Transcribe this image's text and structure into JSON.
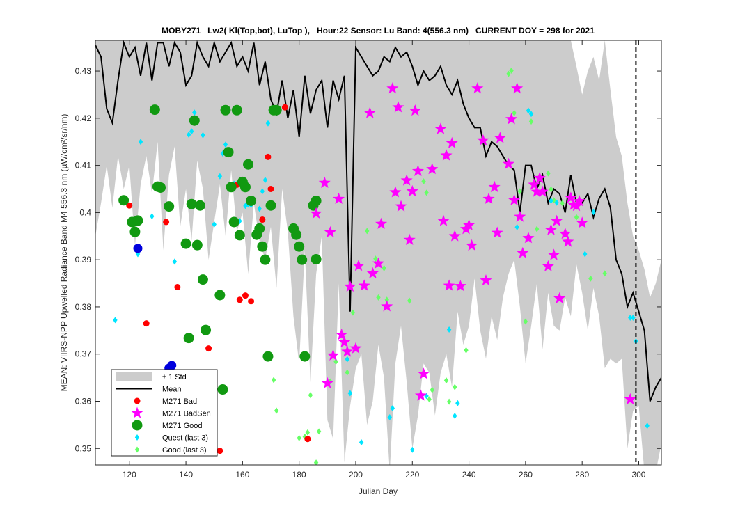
{
  "chart_data": {
    "type": "scatter",
    "title": "MOBY271   Lw2( Kl(Top,bot), LuTop ),   Hour:22 Sensor: Lu Band: 4(556.3 nm)   CURRENT DOY = 298 for 2021",
    "xlabel": "Julian Day",
    "ylabel": "MEAN: VIIRS-NPP Upwelled Radiance Band M4 556.3 nm (µW/cm²/sr/nm)",
    "xlim": [
      108,
      308
    ],
    "ylim": [
      0.3465,
      0.4365
    ],
    "xticks": [
      120,
      140,
      160,
      180,
      200,
      220,
      240,
      260,
      280,
      300
    ],
    "xtick_labels": [
      "120",
      "140",
      "160",
      "180",
      "200",
      "220",
      "240",
      "260",
      "280",
      "300"
    ],
    "yticks": [
      0.35,
      0.36,
      0.37,
      0.38,
      0.39,
      0.4,
      0.41,
      0.42,
      0.43
    ],
    "ytick_labels": [
      "0.35",
      "0.36",
      "0.37",
      "0.38",
      "0.39",
      "0.4",
      "0.41",
      "0.42",
      "0.43"
    ],
    "grid": false,
    "legend_position": "bottom-left",
    "current_doy": 298,
    "colors": {
      "std_band": "#cccccc",
      "mean": "#000000",
      "bad": "#ff0000",
      "badsen": "#ff00ff",
      "good": "#119911",
      "quest": "#00e5ff",
      "good_last3": "#66ff66",
      "blue": "#0000dd"
    },
    "legend": [
      {
        "key": "std",
        "label": "± 1 Std"
      },
      {
        "key": "mean",
        "label": "Mean"
      },
      {
        "key": "bad",
        "label": "M271 Bad"
      },
      {
        "key": "badsen",
        "label": "M271 BadSen"
      },
      {
        "key": "good",
        "label": "M271 Good"
      },
      {
        "key": "quest",
        "label": "Quest (last 3)"
      },
      {
        "key": "good_last3",
        "label": "Good (last 3)"
      }
    ],
    "series": [
      {
        "name": "Mean",
        "key": "mean",
        "x": [
          108,
          110,
          112,
          114,
          116,
          118,
          120,
          122,
          124,
          126,
          128,
          130,
          132,
          134,
          136,
          138,
          140,
          142,
          144,
          146,
          148,
          150,
          152,
          154,
          156,
          158,
          160,
          162,
          164,
          166,
          168,
          170,
          172,
          174,
          176,
          178,
          180,
          182,
          184,
          186,
          188,
          190,
          192,
          194,
          196,
          198,
          200,
          202,
          204,
          206,
          208,
          210,
          212,
          214,
          216,
          218,
          220,
          222,
          224,
          226,
          228,
          230,
          232,
          234,
          236,
          238,
          240,
          242,
          244,
          246,
          248,
          250,
          252,
          254,
          256,
          258,
          260,
          262,
          264,
          266,
          268,
          270,
          272,
          274,
          276,
          278,
          280,
          282,
          284,
          286,
          288,
          290,
          292,
          294,
          296,
          298,
          300,
          302,
          304,
          306,
          308
        ],
        "y": [
          0.4355,
          0.433,
          0.422,
          0.419,
          0.428,
          0.436,
          0.433,
          0.435,
          0.429,
          0.436,
          0.428,
          0.436,
          0.436,
          0.431,
          0.436,
          0.434,
          0.427,
          0.429,
          0.436,
          0.433,
          0.431,
          0.436,
          0.432,
          0.434,
          0.436,
          0.431,
          0.433,
          0.43,
          0.436,
          0.427,
          0.432,
          0.424,
          0.421,
          0.428,
          0.42,
          0.426,
          0.416,
          0.429,
          0.421,
          0.426,
          0.428,
          0.418,
          0.428,
          0.424,
          0.429,
          0.379,
          0.435,
          0.433,
          0.431,
          0.429,
          0.43,
          0.433,
          0.432,
          0.435,
          0.433,
          0.434,
          0.431,
          0.427,
          0.43,
          0.428,
          0.429,
          0.431,
          0.427,
          0.425,
          0.428,
          0.423,
          0.42,
          0.418,
          0.418,
          0.412,
          0.415,
          0.414,
          0.412,
          0.41,
          0.409,
          0.4,
          0.41,
          0.41,
          0.405,
          0.408,
          0.402,
          0.405,
          0.404,
          0.4,
          0.408,
          0.402,
          0.402,
          0.404,
          0.399,
          0.403,
          0.405,
          0.401,
          0.39,
          0.387,
          0.38,
          0.383,
          0.379,
          0.375,
          0.36,
          0.363,
          0.365
        ]
      },
      {
        "name": "± 1 Std",
        "key": "std",
        "x": [
          108,
          110,
          112,
          114,
          116,
          118,
          120,
          122,
          124,
          126,
          128,
          130,
          132,
          134,
          136,
          138,
          140,
          142,
          144,
          146,
          148,
          150,
          152,
          154,
          156,
          158,
          160,
          162,
          164,
          166,
          168,
          170,
          172,
          174,
          176,
          178,
          180,
          182,
          184,
          186,
          188,
          190,
          192,
          194,
          196,
          198,
          200,
          202,
          204,
          206,
          208,
          210,
          212,
          214,
          216,
          218,
          220,
          222,
          224,
          226,
          228,
          230,
          232,
          234,
          236,
          238,
          240,
          242,
          244,
          246,
          248,
          250,
          252,
          254,
          256,
          258,
          260,
          262,
          264,
          266,
          268,
          270,
          272,
          274,
          276,
          278,
          280,
          282,
          284,
          286,
          288,
          290,
          292,
          294,
          296,
          298,
          300,
          302,
          304,
          306,
          308
        ],
        "lower": [
          0.395,
          0.402,
          0.41,
          0.401,
          0.412,
          0.405,
          0.41,
          0.393,
          0.406,
          0.412,
          0.404,
          0.415,
          0.392,
          0.408,
          0.414,
          0.397,
          0.405,
          0.394,
          0.411,
          0.405,
          0.39,
          0.398,
          0.406,
          0.395,
          0.409,
          0.396,
          0.4,
          0.387,
          0.402,
          0.394,
          0.39,
          0.397,
          0.384,
          0.405,
          0.396,
          0.378,
          0.368,
          0.392,
          0.364,
          0.387,
          0.395,
          0.356,
          0.352,
          0.385,
          0.347,
          0.359,
          0.367,
          0.37,
          0.355,
          0.36,
          0.372,
          0.365,
          0.345,
          0.368,
          0.376,
          0.364,
          0.35,
          0.357,
          0.368,
          0.366,
          0.357,
          0.366,
          0.37,
          0.363,
          0.379,
          0.372,
          0.376,
          0.386,
          0.375,
          0.369,
          0.378,
          0.373,
          0.382,
          0.387,
          0.39,
          0.38,
          0.368,
          0.376,
          0.385,
          0.371,
          0.383,
          0.376,
          0.375,
          0.382,
          0.378,
          0.389,
          0.383,
          0.375,
          0.384,
          0.378,
          0.367,
          0.369,
          0.368,
          0.369,
          0.35,
          0.358,
          0.359,
          0.345,
          0.345,
          0.345,
          0.351
        ],
        "upper": [
          0.4365,
          0.4365,
          0.4365,
          0.4365,
          0.4365,
          0.4365,
          0.4365,
          0.4365,
          0.4365,
          0.4365,
          0.4365,
          0.4365,
          0.4365,
          0.4365,
          0.4365,
          0.4365,
          0.4365,
          0.4365,
          0.4365,
          0.4365,
          0.4365,
          0.4365,
          0.4365,
          0.4365,
          0.4365,
          0.4365,
          0.4365,
          0.4365,
          0.4365,
          0.4365,
          0.4365,
          0.4365,
          0.4365,
          0.4365,
          0.4365,
          0.4365,
          0.4365,
          0.4365,
          0.4365,
          0.4365,
          0.4365,
          0.4365,
          0.4365,
          0.4365,
          0.4365,
          0.4365,
          0.4365,
          0.4365,
          0.4365,
          0.4365,
          0.4365,
          0.4365,
          0.4365,
          0.4365,
          0.4365,
          0.4365,
          0.4365,
          0.4365,
          0.4365,
          0.4365,
          0.4365,
          0.4365,
          0.4365,
          0.4365,
          0.4365,
          0.4365,
          0.4365,
          0.4365,
          0.4365,
          0.4365,
          0.4365,
          0.4365,
          0.4365,
          0.4365,
          0.4365,
          0.4365,
          0.4365,
          0.4365,
          0.4365,
          0.4365,
          0.4365,
          0.4365,
          0.4365,
          0.4365,
          0.4365,
          0.431,
          0.425,
          0.43,
          0.433,
          0.428,
          0.4365,
          0.426,
          0.416,
          0.412,
          0.402,
          0.395,
          0.392,
          0.388,
          0.382,
          0.385,
          0.39
        ]
      },
      {
        "name": "M271 Bad",
        "key": "bad",
        "x": [
          120,
          126,
          133,
          137,
          148,
          158,
          159,
          161,
          163,
          167,
          169,
          170,
          175,
          183,
          152
        ],
        "y": [
          0.4015,
          0.3765,
          0.398,
          0.3842,
          0.3712,
          0.4059,
          0.3815,
          0.3824,
          0.3812,
          0.3985,
          0.4118,
          0.405,
          0.4223,
          0.352,
          0.3495
        ]
      },
      {
        "name": "M271 BadSen",
        "key": "badsen",
        "x": [
          186,
          189,
          190,
          191,
          192,
          194,
          195,
          196,
          197,
          198,
          200,
          201,
          203,
          205,
          206,
          208,
          209,
          211,
          213,
          214,
          215,
          216,
          218,
          219,
          220,
          221,
          222,
          223,
          224,
          227,
          230,
          231,
          232,
          233,
          234,
          235,
          237,
          239,
          240,
          241,
          243,
          245,
          246,
          247,
          249,
          250,
          251,
          254,
          255,
          256,
          257,
          258,
          259,
          261,
          263,
          264,
          265,
          266,
          268,
          269,
          270,
          271,
          272,
          274,
          275,
          276,
          277,
          278,
          279,
          280,
          297
        ],
        "y": [
          0.3998,
          0.4063,
          0.3638,
          0.3958,
          0.3697,
          0.4029,
          0.3741,
          0.3725,
          0.3705,
          0.3843,
          0.3712,
          0.3887,
          0.3845,
          0.4211,
          0.3871,
          0.3892,
          0.3976,
          0.3801,
          0.4263,
          0.4043,
          0.4223,
          0.4013,
          0.4068,
          0.3942,
          0.4045,
          0.4216,
          0.4088,
          0.3612,
          0.3658,
          0.4092,
          0.4177,
          0.3982,
          0.4121,
          0.3845,
          0.4147,
          0.395,
          0.3844,
          0.3965,
          0.3973,
          0.393,
          0.4263,
          0.4153,
          0.3856,
          0.4029,
          0.4054,
          0.3957,
          0.4158,
          0.4103,
          0.4198,
          0.4026,
          0.4263,
          0.3991,
          0.3914,
          0.3946,
          0.4059,
          0.4044,
          0.4073,
          0.4044,
          0.3886,
          0.3963,
          0.391,
          0.3982,
          0.3818,
          0.3955,
          0.3938,
          0.4031,
          0.4016,
          0.4014,
          0.4024,
          0.3978,
          0.3604
        ]
      },
      {
        "name": "M271 Good",
        "key": "good",
        "x": [
          118,
          121,
          122,
          123,
          129,
          130,
          131,
          134,
          140,
          141,
          142,
          143,
          144,
          145,
          146,
          147,
          152,
          153,
          154,
          155,
          156,
          157,
          158,
          159,
          160,
          161,
          162,
          163,
          165,
          166,
          167,
          168,
          169,
          170,
          171,
          172,
          178,
          179,
          180,
          181,
          182,
          186,
          186,
          185
        ],
        "y": [
          0.4026,
          0.398,
          0.3959,
          0.3983,
          0.4218,
          0.4055,
          0.4053,
          0.4013,
          0.3934,
          0.3734,
          0.4018,
          0.4195,
          0.3931,
          0.4015,
          0.3858,
          0.3751,
          0.3825,
          0.3625,
          0.4217,
          0.4128,
          0.4054,
          0.398,
          0.4217,
          0.3952,
          0.4065,
          0.4054,
          0.4102,
          0.4025,
          0.3953,
          0.3966,
          0.3928,
          0.39,
          0.3695,
          0.4015,
          0.4217,
          0.4217,
          0.3966,
          0.3953,
          0.3928,
          0.39,
          0.3695,
          0.3901,
          0.4025,
          0.4015
        ]
      },
      {
        "name": "Blue markers",
        "key": "blue",
        "x": [
          123,
          135,
          134
        ],
        "y": [
          0.3924,
          0.3676,
          0.367
        ]
      },
      {
        "name": "Quest (last 3)",
        "key": "quest",
        "x": [
          115,
          123,
          124,
          128,
          136,
          141,
          142,
          143,
          146,
          150,
          152,
          153,
          154,
          157,
          158,
          159,
          161,
          162,
          163,
          165,
          166,
          167,
          168,
          169,
          197,
          198,
          202,
          212,
          213,
          220,
          225,
          233,
          235,
          236,
          257,
          261,
          262,
          269,
          271,
          281,
          284,
          297,
          298,
          299,
          303
        ],
        "y": [
          0.3772,
          0.3912,
          0.415,
          0.3992,
          0.3896,
          0.4165,
          0.4172,
          0.4212,
          0.4164,
          0.3975,
          0.4077,
          0.4125,
          0.4144,
          0.4061,
          0.4061,
          0.3982,
          0.4014,
          0.4017,
          0.4016,
          0.3951,
          0.4008,
          0.4045,
          0.4069,
          0.4189,
          0.3689,
          0.3617,
          0.3513,
          0.3566,
          0.3585,
          0.3497,
          0.3611,
          0.3752,
          0.3569,
          0.3596,
          0.3969,
          0.4216,
          0.4209,
          0.4025,
          0.4021,
          0.3912,
          0.4001,
          0.3777,
          0.3777,
          0.3727,
          0.3548
        ]
      },
      {
        "name": "Good (last 3)",
        "key": "good_last3",
        "x": [
          171,
          172,
          180,
          182,
          183,
          184,
          186,
          187,
          191,
          193,
          197,
          199,
          204,
          207,
          208,
          210,
          211,
          219,
          224,
          225,
          226,
          227,
          232,
          233,
          235,
          239,
          254,
          255,
          256,
          258,
          260,
          262,
          264,
          268,
          269,
          270,
          273,
          278,
          283,
          288
        ],
        "y": [
          0.3645,
          0.358,
          0.3522,
          0.3525,
          0.3534,
          0.3613,
          0.347,
          0.3536,
          0.3642,
          0.3684,
          0.3661,
          0.3788,
          0.3961,
          0.3902,
          0.382,
          0.3882,
          0.3815,
          0.3813,
          0.4066,
          0.4042,
          0.3604,
          0.3624,
          0.3644,
          0.3599,
          0.363,
          0.3708,
          0.4294,
          0.4301,
          0.4211,
          0.4045,
          0.3769,
          0.4193,
          0.3965,
          0.4083,
          0.4049,
          0.4026,
          0.402,
          0.399,
          0.386,
          0.3871
        ]
      }
    ]
  }
}
